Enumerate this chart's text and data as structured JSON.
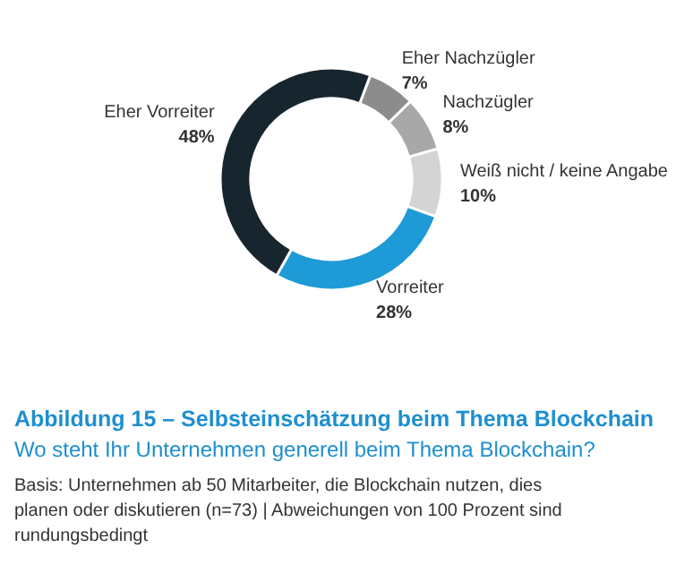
{
  "chart_data": {
    "type": "donut",
    "title": "Abbildung 15 – Selbsteinschätzung beim Thema Blockchain",
    "subtitle": "Wo steht Ihr Unternehmen generell beim Thema Blockchain?",
    "categories": [
      "Eher Nachzügler",
      "Nachzügler",
      "Weiß nicht / keine Angabe",
      "Vorreiter",
      "Eher Vorreiter"
    ],
    "values": [
      7,
      8,
      10,
      28,
      48
    ],
    "colors": [
      "#8c8c8c",
      "#a8a8a8",
      "#d4d4d4",
      "#1e9ad6",
      "#17252f"
    ],
    "annotations": [
      "Basis: Unternehmen ab 50 Mitarbeiter, die Blockchain nutzen, dies planen oder diskutieren (n=73) | Abweichungen von 100 Prozent sind rundungsbedingt"
    ],
    "value_labels": [
      "7%",
      "8%",
      "10%",
      "28%",
      "48%"
    ]
  }
}
